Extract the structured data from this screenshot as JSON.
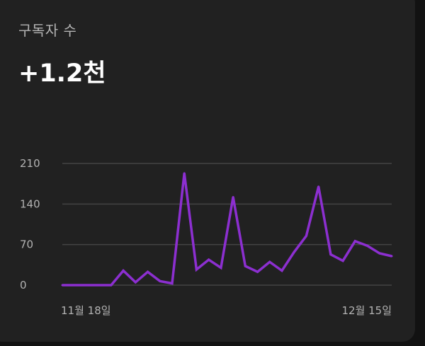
{
  "card": {
    "title": "구독자 수",
    "value": "+1.2천"
  },
  "colors": {
    "background": "#121212",
    "card": "#212121",
    "line": "#8c2fd0",
    "grid": "#444444",
    "text_primary": "#ffffff",
    "text_secondary": "#b3b3b3"
  },
  "chart_data": {
    "type": "line",
    "title": "",
    "xlabel": "",
    "ylabel": "",
    "ylim": [
      0,
      210
    ],
    "yticks": [
      0,
      70,
      140,
      210
    ],
    "ytick_labels": [
      "0",
      "70",
      "140",
      "210"
    ],
    "xtick_labels": [
      {
        "label": "11월 18일",
        "index": 4
      },
      {
        "label": "12월 15일",
        "index": 27
      }
    ],
    "grid": true,
    "legend": "none",
    "series": [
      {
        "values": [
          0,
          0,
          0,
          0,
          0,
          25,
          5,
          23,
          7,
          3,
          193,
          27,
          44,
          30,
          152,
          33,
          23,
          40,
          25,
          57,
          85,
          170,
          53,
          42,
          76,
          68,
          55,
          50
        ]
      }
    ]
  }
}
